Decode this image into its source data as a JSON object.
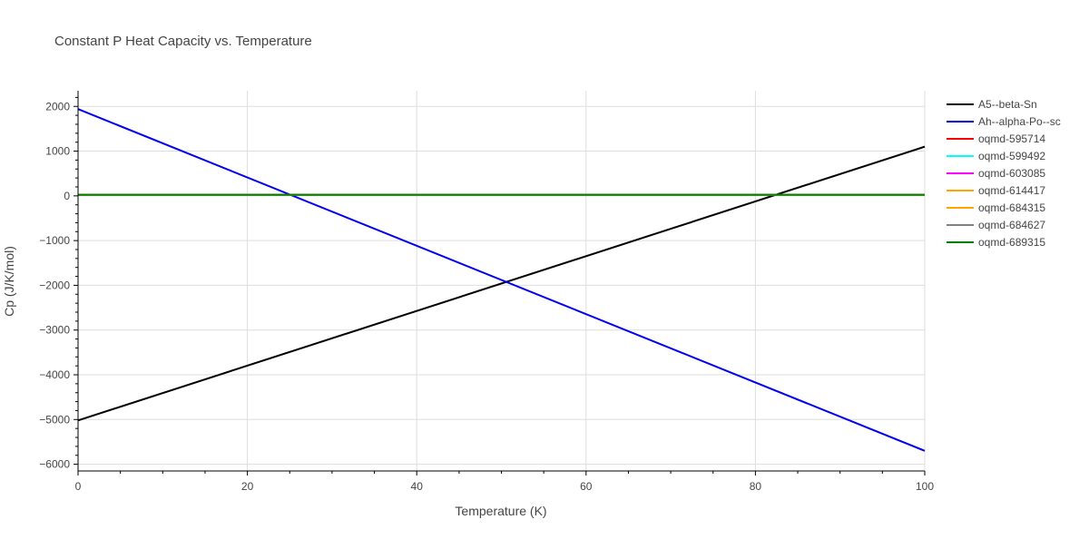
{
  "chart_data": {
    "type": "line",
    "title": "Constant P Heat Capacity vs. Temperature",
    "xlabel": "Temperature (K)",
    "ylabel": "Cp (J/K/mol)",
    "xlim": [
      0,
      100
    ],
    "ylim": [
      -6150,
      2350
    ],
    "xticks": [
      0,
      20,
      40,
      60,
      80,
      100
    ],
    "xtick_labels": [
      "0",
      "20",
      "40",
      "60",
      "80",
      "100"
    ],
    "yticks": [
      2000,
      1000,
      0,
      -1000,
      -2000,
      -3000,
      -4000,
      -5000,
      -6000
    ],
    "ytick_labels": [
      "2000",
      "1000",
      "0",
      "−1000",
      "−2000",
      "−3000",
      "−4000",
      "−5000",
      "−6000"
    ],
    "grid": true,
    "legend_position": "right",
    "series": [
      {
        "name": "A5--beta-Sn",
        "color": "#000000",
        "x": [
          0,
          100
        ],
        "y": [
          -5020,
          1100
        ]
      },
      {
        "name": "Ah--alpha-Po--sc",
        "color": "#0000ee",
        "x": [
          0,
          100
        ],
        "y": [
          1940,
          -5700
        ]
      },
      {
        "name": "oqmd-595714",
        "color": "#ff0000",
        "x": [
          0,
          100
        ],
        "y": [
          25,
          25
        ]
      },
      {
        "name": "oqmd-599492",
        "color": "#00ffff",
        "x": [
          0,
          100
        ],
        "y": [
          25,
          25
        ]
      },
      {
        "name": "oqmd-603085",
        "color": "#ff00ff",
        "x": [
          0,
          100
        ],
        "y": [
          25,
          25
        ]
      },
      {
        "name": "oqmd-614417",
        "color": "#ffa500",
        "x": [
          0,
          100
        ],
        "y": [
          25,
          25
        ]
      },
      {
        "name": "oqmd-684315",
        "color": "#ffa500",
        "x": [
          0,
          100
        ],
        "y": [
          25,
          25
        ]
      },
      {
        "name": "oqmd-684627",
        "color": "#808080",
        "x": [
          0,
          100
        ],
        "y": [
          25,
          25
        ]
      },
      {
        "name": "oqmd-689315",
        "color": "#008000",
        "x": [
          0,
          100
        ],
        "y": [
          25,
          25
        ]
      }
    ]
  }
}
